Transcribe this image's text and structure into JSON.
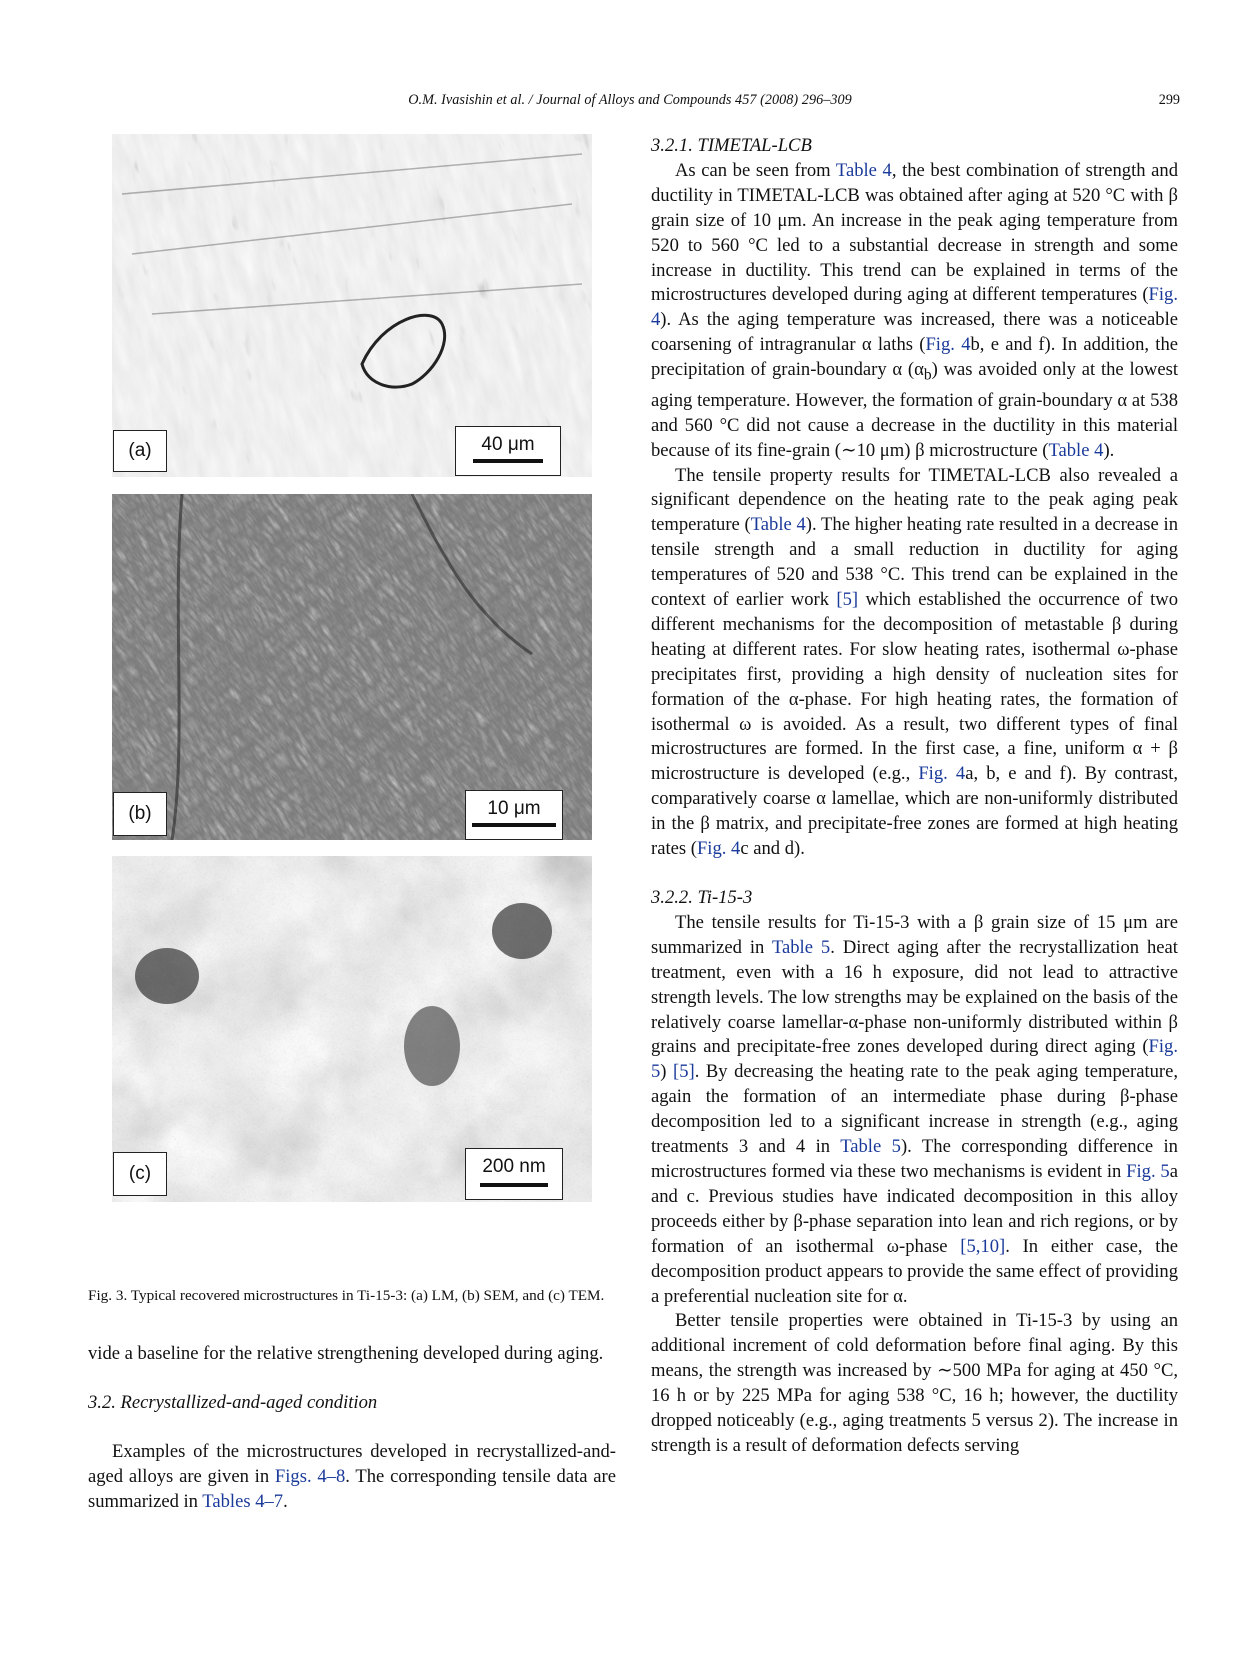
{
  "header": {
    "running_head": "O.M. Ivasishin et al. / Journal of Alloys and Compounds 457 (2008) 296–309",
    "page_number": "299"
  },
  "figure": {
    "panels": [
      {
        "label": "(a)",
        "scale": "40 μm"
      },
      {
        "label": "(b)",
        "scale": "10 μm"
      },
      {
        "label": "(c)",
        "scale": "200 nm"
      }
    ],
    "caption": "Fig. 3. Typical recovered microstructures in Ti-15-3: (a) LM, (b) SEM, and (c) TEM."
  },
  "left_text": {
    "p_cont": "vide a baseline for the relative strengthening developed during aging.",
    "section_32": "3.2. Recrystallized-and-aged condition",
    "p_examples": {
      "t1": "Examples of the microstructures developed in recrystallized-and-aged alloys are given in ",
      "l1": "Figs. 4–8",
      "t2": ". The corresponding tensile data are summarized in ",
      "l2": "Tables 4–7",
      "t3": "."
    }
  },
  "right_text": {
    "section_321": "3.2.1. TIMETAL-LCB",
    "p1": {
      "t1": "As can be seen from ",
      "l1": "Table 4",
      "t2": ", the best combination of strength and ductility in TIMETAL-LCB was obtained after aging at 520 °C with β grain size of 10 μm. An increase in the peak aging temperature from 520 to 560 °C led to a substantial decrease in strength and some increase in ductility. This trend can be explained in terms of the microstructures developed during aging at different temperatures (",
      "l2": "Fig. 4",
      "t3": "). As the aging temperature was increased, there was a noticeable coarsening of intragranular α laths (",
      "l3": "Fig. 4",
      "t4": "b, e and f). In addition, the precipitation of grain-boundary α (α",
      "sub": "b",
      "t5": ") was avoided only at the lowest aging temperature. However, the formation of grain-boundary α at 538 and 560 °C did not cause a decrease in the ductility in this material because of its fine-grain (∼10 μm) β microstructure (",
      "l4": "Table 4",
      "t6": ")."
    },
    "p2": {
      "t1": "The tensile property results for TIMETAL-LCB also revealed a significant dependence on the heating rate to the peak aging peak temperature (",
      "l1": "Table 4",
      "t2": "). The higher heating rate resulted in a decrease in tensile strength and a small reduction in ductility for aging temperatures of 520 and 538 °C. This trend can be explained in the context of earlier work ",
      "l2": "[5]",
      "t3": " which established the occurrence of two different mechanisms for the decomposition of metastable β during heating at different rates. For slow heating rates, isothermal ω-phase precipitates first, providing a high density of nucleation sites for formation of the α-phase. For high heating rates, the formation of isothermal ω is avoided. As a result, two different types of final microstructures are formed. In the first case, a fine, uniform α + β microstructure is developed (e.g., ",
      "l3": "Fig. 4",
      "t4": "a, b, e and f). By contrast, comparatively coarse α lamellae, which are non-uniformly distributed in the β matrix, and precipitate-free zones are formed at high heating rates (",
      "l4": "Fig. 4",
      "t5": "c and d)."
    },
    "section_322": "3.2.2. Ti-15-3",
    "p3": {
      "t1": "The tensile results for Ti-15-3 with a β grain size of 15 μm are summarized in ",
      "l1": "Table 5",
      "t2": ". Direct aging after the recrystallization heat treatment, even with a 16 h exposure, did not lead to attractive strength levels. The low strengths may be explained on the basis of the relatively coarse lamellar-α-phase non-uniformly distributed within β grains and precipitate-free zones developed during direct aging (",
      "l2": "Fig. 5",
      "t3": ") ",
      "l3": "[5]",
      "t4": ". By decreasing the heating rate to the peak aging temperature, again the formation of an intermediate phase during β-phase decomposition led to a significant increase in strength (e.g., aging treatments 3 and 4 in ",
      "l4": "Table 5",
      "t5": "). The corresponding difference in microstructures formed via these two mechanisms is evident in ",
      "l5": "Fig. 5",
      "t6": "a and c. Previous studies have indicated decomposition in this alloy proceeds either by β-phase separation into lean and rich regions, or by formation of an isothermal ω-phase ",
      "l6": "[5,10]",
      "t7": ". In either case, the decomposition product appears to provide the same effect of providing a preferential nucleation site for α."
    },
    "p4": "Better tensile properties were obtained in Ti-15-3 by using an additional increment of cold deformation before final aging. By this means, the strength was increased by ∼500 MPa for aging at 450 °C, 16 h or by 225 MPa for aging 538 °C, 16 h; however, the ductility dropped noticeably (e.g., aging treatments 5 versus 2). The increase in strength is a result of deformation defects serving"
  }
}
